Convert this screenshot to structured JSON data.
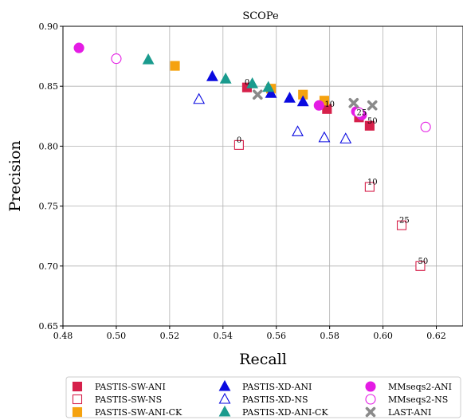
{
  "chart_data": {
    "type": "scatter",
    "title": "SCOPe",
    "xlabel": "Recall",
    "ylabel": "Precision",
    "xlim": [
      0.48,
      0.63
    ],
    "ylim": [
      0.65,
      0.9
    ],
    "xticks": [
      0.48,
      0.5,
      0.52,
      0.54,
      0.56,
      0.58,
      0.6,
      0.62
    ],
    "xtick_labels": [
      "0.48",
      "0.50",
      "0.52",
      "0.54",
      "0.56",
      "0.58",
      "0.60",
      "0.62"
    ],
    "yticks": [
      0.65,
      0.7,
      0.75,
      0.8,
      0.85,
      0.9
    ],
    "ytick_labels": [
      "0.65",
      "0.70",
      "0.75",
      "0.80",
      "0.85",
      "0.90"
    ],
    "grid": true,
    "legend_position": "bottom",
    "series": [
      {
        "name": "PASTIS-SW-ANI",
        "marker": "square",
        "filled": true,
        "color": "#d6204a",
        "points": [
          [
            0.549,
            0.849
          ],
          [
            0.579,
            0.831
          ],
          [
            0.591,
            0.824
          ],
          [
            0.595,
            0.817
          ]
        ]
      },
      {
        "name": "PASTIS-SW-NS",
        "marker": "square",
        "filled": false,
        "color": "#d6204a",
        "points": [
          [
            0.546,
            0.801
          ],
          [
            0.595,
            0.766
          ],
          [
            0.607,
            0.734
          ],
          [
            0.614,
            0.7
          ]
        ]
      },
      {
        "name": "PASTIS-SW-ANI-CK",
        "marker": "square",
        "filled": true,
        "color": "#f5a20f",
        "points": [
          [
            0.522,
            0.867
          ],
          [
            0.558,
            0.848
          ],
          [
            0.57,
            0.843
          ],
          [
            0.578,
            0.838
          ]
        ]
      },
      {
        "name": "PASTIS-XD-ANI",
        "marker": "triangle",
        "filled": true,
        "color": "#0a0ae0",
        "points": [
          [
            0.536,
            0.858
          ],
          [
            0.558,
            0.844
          ],
          [
            0.565,
            0.84
          ],
          [
            0.57,
            0.837
          ]
        ]
      },
      {
        "name": "PASTIS-XD-NS",
        "marker": "triangle",
        "filled": false,
        "color": "#0a0ae0",
        "points": [
          [
            0.531,
            0.839
          ],
          [
            0.568,
            0.812
          ],
          [
            0.578,
            0.807
          ],
          [
            0.586,
            0.806
          ]
        ]
      },
      {
        "name": "PASTIS-XD-ANI-CK",
        "marker": "triangle",
        "filled": true,
        "color": "#1a9b8e",
        "points": [
          [
            0.512,
            0.872
          ],
          [
            0.541,
            0.856
          ],
          [
            0.551,
            0.852
          ],
          [
            0.557,
            0.849
          ]
        ]
      },
      {
        "name": "MMseqs2-ANI",
        "marker": "circle",
        "filled": true,
        "color": "#e41ce4",
        "points": [
          [
            0.486,
            0.882
          ],
          [
            0.576,
            0.834
          ],
          [
            0.59,
            0.829
          ],
          [
            0.592,
            0.826
          ]
        ]
      },
      {
        "name": "MMseqs2-NS",
        "marker": "circle",
        "filled": false,
        "color": "#e41ce4",
        "points": [
          [
            0.5,
            0.873
          ],
          [
            0.591,
            0.828
          ],
          [
            0.616,
            0.816
          ]
        ]
      },
      {
        "name": "LAST-ANI",
        "marker": "cross",
        "filled": true,
        "color": "#8a8a8a",
        "points": [
          [
            0.553,
            0.843
          ],
          [
            0.589,
            0.836
          ],
          [
            0.596,
            0.834
          ]
        ]
      }
    ],
    "annotations": [
      {
        "text": "0",
        "x": 0.549,
        "y": 0.849
      },
      {
        "text": "10",
        "x": 0.579,
        "y": 0.831
      },
      {
        "text": "25",
        "x": 0.591,
        "y": 0.824
      },
      {
        "text": "50",
        "x": 0.595,
        "y": 0.817
      },
      {
        "text": "0",
        "x": 0.546,
        "y": 0.801
      },
      {
        "text": "10",
        "x": 0.595,
        "y": 0.766
      },
      {
        "text": "25",
        "x": 0.607,
        "y": 0.734
      },
      {
        "text": "50",
        "x": 0.614,
        "y": 0.7
      }
    ]
  }
}
